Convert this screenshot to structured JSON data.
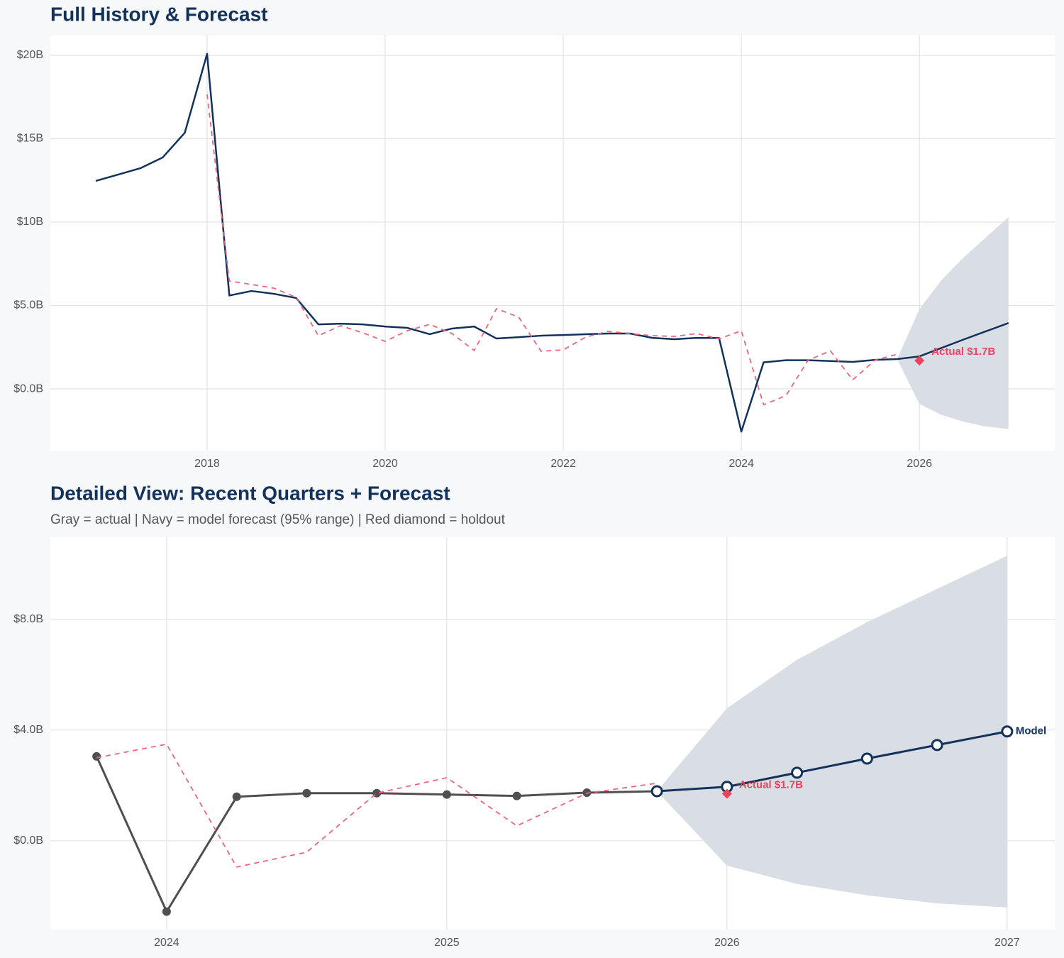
{
  "chart_data": [
    {
      "type": "line",
      "title": "Full History & Forecast",
      "x": [
        2016.75,
        2017,
        2017.25,
        2017.5,
        2017.75,
        2018,
        2018.25,
        2018.5,
        2018.75,
        2019,
        2019.25,
        2019.5,
        2019.75,
        2020,
        2020.25,
        2020.5,
        2020.75,
        2021,
        2021.25,
        2021.5,
        2021.75,
        2022,
        2022.25,
        2022.5,
        2022.75,
        2023,
        2023.25,
        2023.5,
        2023.75,
        2024,
        2024.25,
        2024.5,
        2024.75,
        2025,
        2025.25,
        2025.5,
        2025.75,
        2026,
        2026.25,
        2026.5,
        2026.75,
        2027
      ],
      "series": [
        {
          "color": "#13325b",
          "width": 2.5,
          "values": [
            12.47,
            12.85,
            13.23,
            13.87,
            15.36,
            20.09,
            5.6,
            5.87,
            5.7,
            5.45,
            3.87,
            3.91,
            3.87,
            3.74,
            3.66,
            3.28,
            3.62,
            3.74,
            3.02,
            3.1,
            3.19,
            3.23,
            3.28,
            3.32,
            3.32,
            3.06,
            2.98,
            3.06,
            3.05,
            -2.56,
            1.59,
            1.72,
            1.72,
            1.67,
            1.62,
            1.74,
            1.79,
            null,
            null,
            null,
            null,
            null
          ]
        },
        {
          "color": "#e8677a",
          "dash": "7 6",
          "width": 1.8,
          "values": [
            null,
            null,
            null,
            null,
            null,
            17.66,
            6.47,
            6.26,
            6.04,
            5.49,
            3.19,
            3.79,
            3.36,
            2.85,
            3.49,
            3.87,
            3.32,
            2.3,
            4.81,
            4.3,
            2.26,
            2.34,
            3.1,
            3.45,
            3.32,
            3.19,
            3.15,
            3.32,
            3.0,
            3.49,
            -0.95,
            -0.41,
            1.72,
            2.28,
            0.54,
            1.72,
            2.08,
            null,
            null,
            null,
            null,
            null
          ]
        },
        {
          "color": "#13325b",
          "width": 2.5,
          "values": [
            null,
            null,
            null,
            null,
            null,
            null,
            null,
            null,
            null,
            null,
            null,
            null,
            null,
            null,
            null,
            null,
            null,
            null,
            null,
            null,
            null,
            null,
            null,
            null,
            null,
            null,
            null,
            null,
            null,
            null,
            null,
            null,
            null,
            null,
            null,
            null,
            1.79,
            1.95,
            2.46,
            2.97,
            3.46,
            3.95
          ]
        }
      ],
      "band": {
        "color": "#d9dee4",
        "upper": [
          null,
          null,
          null,
          null,
          null,
          null,
          null,
          null,
          null,
          null,
          null,
          null,
          null,
          null,
          null,
          null,
          null,
          null,
          null,
          null,
          null,
          null,
          null,
          null,
          null,
          null,
          null,
          null,
          null,
          null,
          null,
          null,
          null,
          null,
          null,
          null,
          1.79,
          4.79,
          6.54,
          7.9,
          9.1,
          10.3
        ],
        "lower": [
          null,
          null,
          null,
          null,
          null,
          null,
          null,
          null,
          null,
          null,
          null,
          null,
          null,
          null,
          null,
          null,
          null,
          null,
          null,
          null,
          null,
          null,
          null,
          null,
          null,
          null,
          null,
          null,
          null,
          null,
          null,
          null,
          null,
          null,
          null,
          null,
          1.79,
          -0.9,
          -1.56,
          -1.97,
          -2.26,
          -2.41
        ]
      },
      "holdout": {
        "x": 2026,
        "value": 1.7,
        "label": "Actual $1.7B",
        "color": "#e8445f"
      },
      "xlim": [
        2016.24,
        2027.52
      ],
      "xticks": [
        2018,
        2020,
        2022,
        2024,
        2026
      ],
      "ylim": [
        -3.7,
        21.19
      ],
      "yticks": [
        {
          "value": 0,
          "label": "$0.0B"
        },
        {
          "value": 5,
          "label": "$5.0B"
        },
        {
          "value": 10,
          "label": "$10B"
        },
        {
          "value": 15,
          "label": "$15B"
        },
        {
          "value": 20,
          "label": "$20B"
        }
      ],
      "grid": true
    },
    {
      "type": "line",
      "title": "Detailed View: Recent Quarters + Forecast",
      "subtitle": "Gray = actual  |  Navy = model forecast (95% range)  |  Red diamond = holdout",
      "x": [
        2023.75,
        2024,
        2024.25,
        2024.5,
        2024.75,
        2025,
        2025.25,
        2025.5,
        2025.75,
        2026,
        2026.25,
        2026.5,
        2026.75,
        2027
      ],
      "series": [
        {
          "color": "#4f4f4f",
          "width": 3,
          "marker": "filled",
          "values": [
            3.05,
            -2.56,
            1.59,
            1.72,
            1.72,
            1.67,
            1.62,
            1.74,
            1.79,
            null,
            null,
            null,
            null,
            null
          ]
        },
        {
          "color": "#e8677a",
          "dash": "7 6",
          "width": 1.8,
          "values": [
            3.0,
            3.49,
            -0.95,
            -0.41,
            1.72,
            2.28,
            0.54,
            1.72,
            2.08,
            null,
            null,
            null,
            null,
            null
          ]
        },
        {
          "name": "Model",
          "color": "#13325b",
          "width": 3,
          "marker": "open",
          "values": [
            null,
            null,
            null,
            null,
            null,
            null,
            null,
            null,
            1.79,
            1.95,
            2.46,
            2.97,
            3.46,
            3.95
          ]
        }
      ],
      "band": {
        "color": "#d9dee4",
        "upper": [
          null,
          null,
          null,
          null,
          null,
          null,
          null,
          null,
          1.79,
          4.79,
          6.54,
          7.9,
          9.1,
          10.3
        ],
        "lower": [
          null,
          null,
          null,
          null,
          null,
          null,
          null,
          null,
          1.79,
          -0.9,
          -1.56,
          -1.97,
          -2.26,
          -2.41
        ]
      },
      "holdout": {
        "x": 2026,
        "value": 1.7,
        "label": "Actual $1.7B",
        "color": "#e8445f"
      },
      "xlim": [
        2023.585,
        2027.17
      ],
      "xticks": [
        2024,
        2025,
        2026,
        2027
      ],
      "ylim": [
        -3.21,
        10.97
      ],
      "yticks": [
        {
          "value": 0,
          "label": "$0.0B"
        },
        {
          "value": 4,
          "label": "$4.0B"
        },
        {
          "value": 8,
          "label": "$8.0B"
        }
      ],
      "grid": true
    }
  ]
}
